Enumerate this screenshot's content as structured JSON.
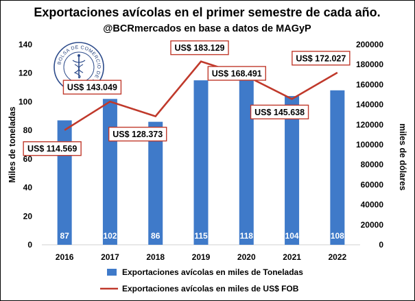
{
  "chart_data": {
    "type": "bar+line",
    "title": "Exportaciones avícolas en el primer semestre de cada año.",
    "subtitle": "@BCRmercados en base a datos de MAGyP",
    "categories": [
      "2016",
      "2017",
      "2018",
      "2019",
      "2020",
      "2021",
      "2022"
    ],
    "y_left": {
      "label": "Miles de toneladas",
      "ylim": [
        0,
        140
      ],
      "ticks": [
        "0",
        "20",
        "40",
        "60",
        "80",
        "100",
        "120",
        "140"
      ]
    },
    "y_right": {
      "label": "miles de dólares",
      "ylim": [
        0,
        200000
      ],
      "ticks": [
        "0",
        "20000",
        "40000",
        "60000",
        "80000",
        "100000",
        "120000",
        "140000",
        "160000",
        "180000",
        "200000"
      ]
    },
    "series": [
      {
        "name": "Exportaciones avícolas en miles de Toneladas",
        "type": "bar",
        "axis": "left",
        "color": "#3f7ac9",
        "values": [
          87,
          102,
          86,
          115,
          118,
          104,
          108
        ],
        "labels": [
          "87",
          "102",
          "86",
          "115",
          "118",
          "104",
          "108"
        ]
      },
      {
        "name": "Exportaciones avícolas en miles de US$ FOB",
        "type": "line",
        "axis": "right",
        "color": "#c0392b",
        "values": [
          114569,
          143049,
          128373,
          183129,
          168491,
          145638,
          172027
        ],
        "labels": [
          "US$ 114.569",
          "US$ 143.049",
          "US$ 128.373",
          "US$ 183.129",
          "US$ 168.491",
          "US$ 145.638",
          "US$ 172.027"
        ]
      }
    ],
    "grid": false,
    "legend_position": "bottom",
    "seal_text": "BOLSA DE COMERCIO DE ROSARIO"
  }
}
